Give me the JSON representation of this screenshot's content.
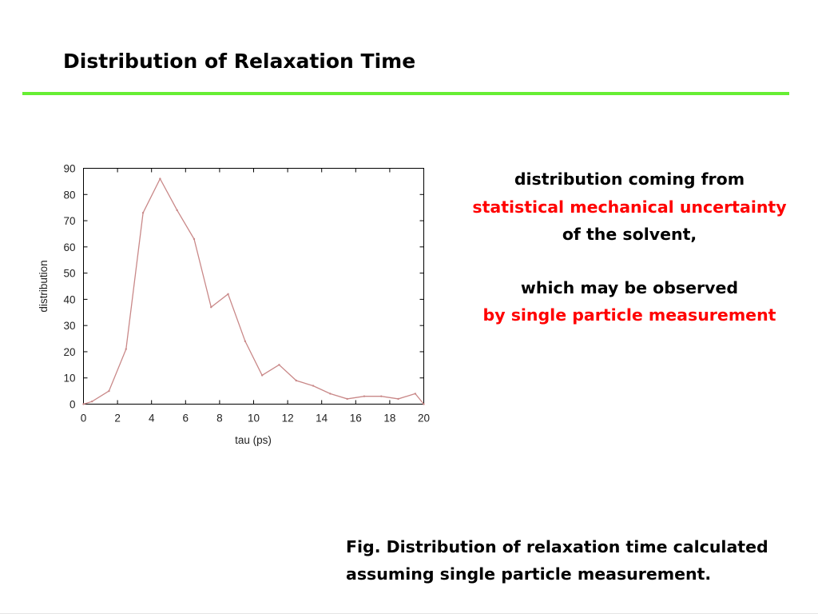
{
  "slide": {
    "title": "Distribution of Relaxation Time",
    "rule_color": "#66ee33"
  },
  "side_text": {
    "line1": "distribution coming from",
    "line2": "statistical mechanical uncertainty",
    "line3": "of the solvent,",
    "line4": "which may be observed",
    "line5": "by single particle measurement",
    "highlight_color": "#ff0000"
  },
  "caption": {
    "line1": "Fig. Distribution of relaxation time calculated",
    "line2": "assuming single particle measurement."
  },
  "chart_data": {
    "type": "line",
    "title": "",
    "xlabel": "tau (ps)",
    "ylabel": "distribution",
    "xlim": [
      0,
      20
    ],
    "ylim": [
      0,
      90
    ],
    "x_ticks": [
      0,
      2,
      4,
      6,
      8,
      10,
      12,
      14,
      16,
      18,
      20
    ],
    "y_ticks": [
      0,
      10,
      20,
      30,
      40,
      50,
      60,
      70,
      80,
      90
    ],
    "grid": false,
    "line_color": "#c98888",
    "series": [
      {
        "x": [
          0,
          0.5,
          1.5,
          2.5,
          3.5,
          4.5,
          5.5,
          6.5,
          7.5,
          8.5,
          9.5,
          10.5,
          11.5,
          12.5,
          13.5,
          14.5,
          15.5,
          16.5,
          17.5,
          18.5,
          19.5,
          20
        ],
        "values": [
          0,
          1,
          5,
          21,
          73,
          86,
          74,
          63,
          37,
          42,
          24,
          11,
          15,
          9,
          7,
          4,
          2,
          3,
          3,
          2,
          4,
          0
        ]
      }
    ]
  }
}
